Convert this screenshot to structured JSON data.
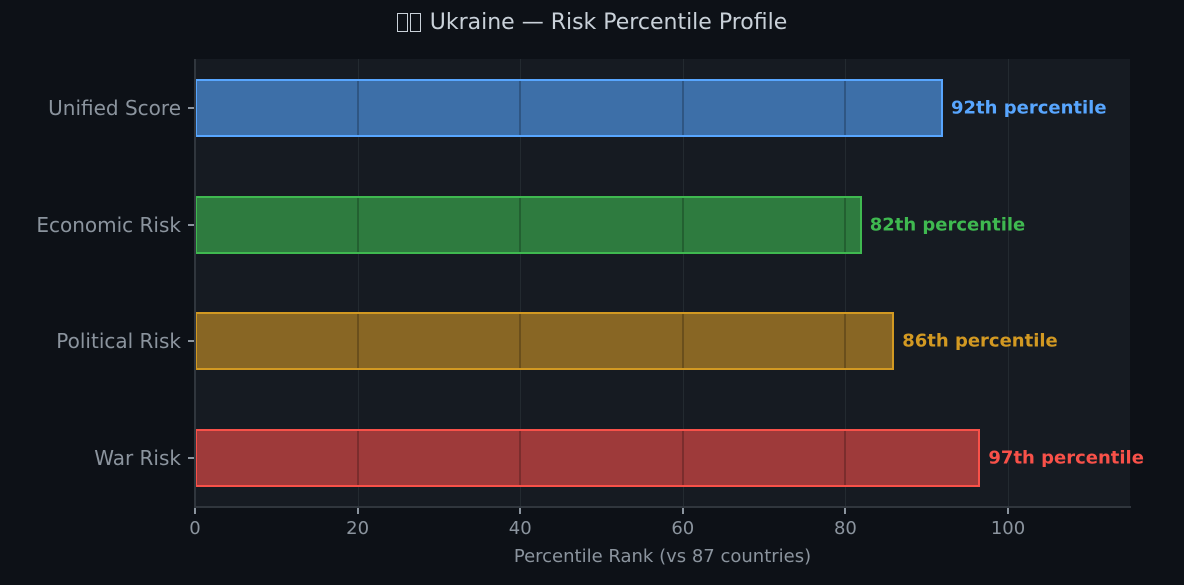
{
  "title": {
    "flag_glyph_count": 2,
    "text": "Ukraine — Risk Percentile Profile"
  },
  "chart_data": {
    "type": "bar",
    "orientation": "horizontal",
    "title": "🇺🇦 Ukraine — Risk Percentile Profile",
    "xlabel": "Percentile Rank (vs 87 countries)",
    "ylabel": "",
    "xlim": [
      0,
      115
    ],
    "xticks": [
      0,
      20,
      40,
      60,
      80,
      100
    ],
    "grid": true,
    "categories": [
      "Unified Score",
      "Economic Risk",
      "Political Risk",
      "War Risk"
    ],
    "values": [
      92,
      82,
      86,
      97
    ],
    "labels": [
      "92th percentile",
      "82th percentile",
      "86th percentile",
      "97th percentile"
    ],
    "colors": {
      "Unified Score": {
        "fill": "#3d6fa8",
        "edge": "#58a6ff"
      },
      "Economic Risk": {
        "fill": "#2e7b3f",
        "edge": "#3fb950"
      },
      "Political Risk": {
        "fill": "#886624",
        "edge": "#d29922"
      },
      "War Risk": {
        "fill": "#9e3a3a",
        "edge": "#f85149"
      }
    }
  },
  "axis": {
    "xticklabels": [
      "0",
      "20",
      "40",
      "60",
      "80",
      "100"
    ],
    "xlabel": "Percentile Rank (vs 87 countries)"
  },
  "bars": [
    {
      "label": "Unified Score",
      "value": 92,
      "value_label": "92th percentile",
      "fill": "#3d6fa8",
      "edge": "#58a6ff",
      "text_color": "#58a6ff"
    },
    {
      "label": "Economic Risk",
      "value": 82,
      "value_label": "82th percentile",
      "fill": "#2e7b3f",
      "edge": "#3fb950",
      "text_color": "#3fb950"
    },
    {
      "label": "Political Risk",
      "value": 86,
      "value_label": "86th percentile",
      "fill": "#886624",
      "edge": "#d29922",
      "text_color": "#d29922"
    },
    {
      "label": "War Risk",
      "value": 96.6,
      "value_label": "97th percentile",
      "fill": "#9e3a3a",
      "edge": "#f85149",
      "text_color": "#f85149"
    }
  ]
}
